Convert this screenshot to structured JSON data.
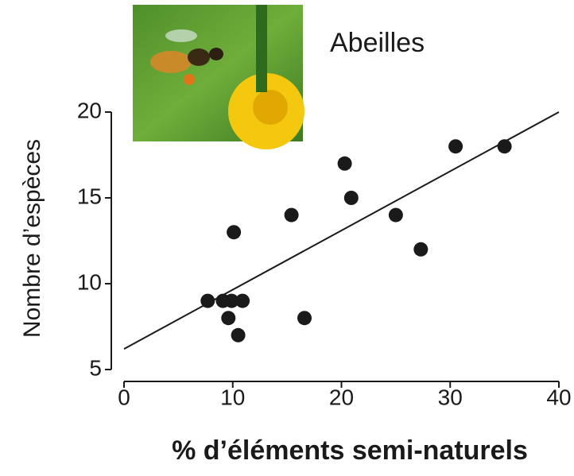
{
  "chart_data": {
    "type": "scatter",
    "annotation": "Abeilles",
    "x_label": "% d’éléments semi-naturels",
    "y_label": "Nombre d’espèces",
    "x": [
      7.7,
      9.1,
      9.9,
      10.9,
      9.6,
      10.5,
      10.1,
      15.4,
      16.6,
      20.3,
      20.9,
      25.0,
      27.3,
      30.5,
      35.0
    ],
    "values": [
      9,
      9,
      9,
      9,
      8,
      7,
      13,
      14,
      8,
      17,
      15,
      14,
      12,
      18,
      18
    ],
    "color": "#1a1a1a",
    "trendline": {
      "x": [
        0,
        40
      ],
      "values": [
        6.2,
        20
      ],
      "color": "#1a1a1a"
    },
    "xlim": [
      0,
      40
    ],
    "xticks": [
      0,
      10,
      20,
      30,
      40
    ],
    "ylim": [
      5,
      20
    ],
    "yticks": [
      5,
      10,
      15,
      20
    ]
  }
}
